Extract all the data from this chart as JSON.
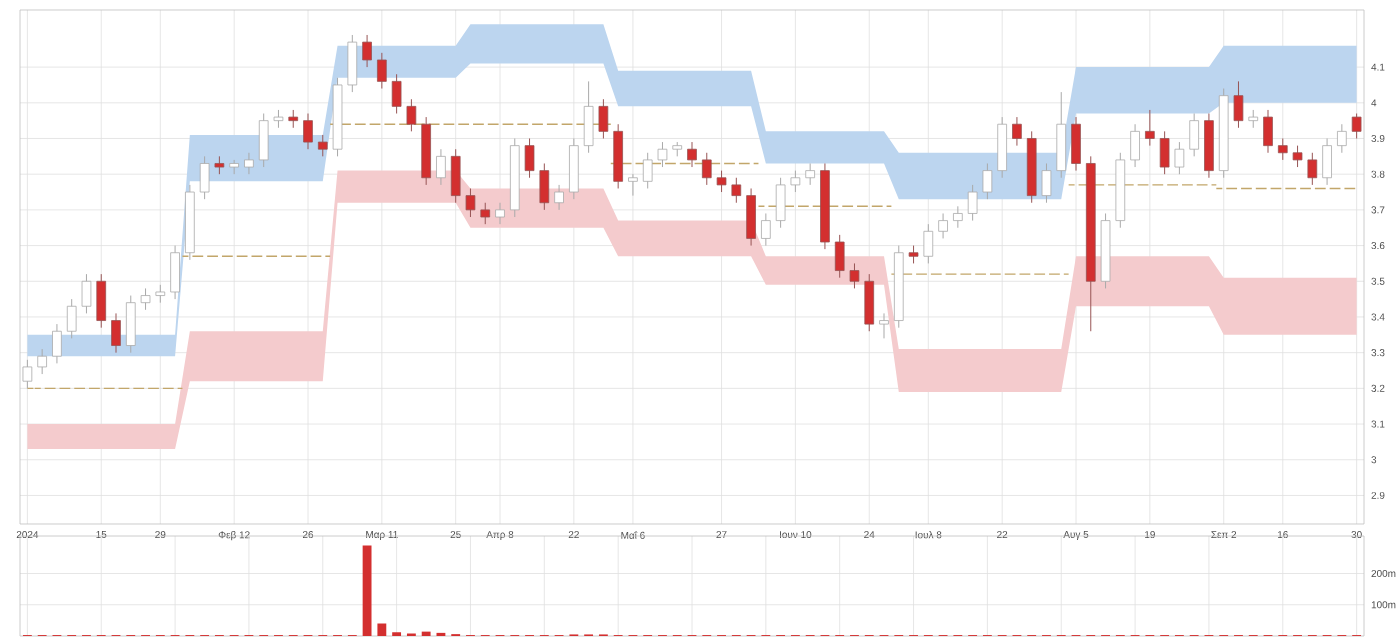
{
  "chart_data": [
    {
      "type": "candlestick",
      "grid": true,
      "categories": [
        "2024",
        null,
        null,
        null,
        null,
        "15",
        null,
        null,
        null,
        "29",
        null,
        null,
        null,
        null,
        "Φεβ 12",
        null,
        null,
        null,
        null,
        "26",
        null,
        null,
        null,
        null,
        "Μαρ 11",
        null,
        null,
        null,
        null,
        "25",
        null,
        null,
        "Απρ 8",
        null,
        null,
        null,
        null,
        "22",
        null,
        null,
        null,
        "Μαΐ 6",
        null,
        null,
        null,
        null,
        null,
        "27",
        null,
        null,
        null,
        null,
        "Ιουν 10",
        null,
        null,
        null,
        null,
        "24",
        null,
        null,
        null,
        "Ιουλ 8",
        null,
        null,
        null,
        null,
        "22",
        null,
        null,
        null,
        null,
        "Αυγ 5",
        null,
        null,
        null,
        null,
        "19",
        null,
        null,
        null,
        null,
        "Σεπ 2",
        null,
        null,
        null,
        "16",
        null,
        null,
        null,
        null,
        "30"
      ],
      "ylim": [
        2.82,
        4.26
      ],
      "yticks": [
        2.9,
        3,
        3.1,
        3.2,
        3.3,
        3.4,
        3.5,
        3.6,
        3.7,
        3.8,
        3.9,
        4,
        4.1
      ],
      "series": [
        {
          "type": "area",
          "color": "#bcd5ef",
          "values": [
            null,
            null,
            null,
            null,
            null,
            null,
            null,
            null,
            null,
            null,
            null,
            null,
            null,
            null,
            null,
            null,
            null,
            null,
            null,
            null,
            null,
            null,
            null,
            null,
            null,
            null,
            null,
            null,
            null,
            null,
            null,
            null,
            null,
            null,
            null,
            null,
            null,
            null,
            null,
            null,
            null,
            null,
            null,
            null,
            null,
            null,
            null,
            null,
            null,
            null,
            null,
            null,
            null,
            null,
            null,
            null,
            null,
            null,
            null,
            null,
            null,
            null,
            null,
            null,
            null,
            null,
            null,
            null,
            null,
            null,
            null,
            null,
            null,
            null,
            null,
            null,
            null,
            null,
            null,
            null,
            null,
            null,
            null,
            null,
            null,
            null,
            null,
            null,
            null,
            null,
            null
          ],
          "lower": [
            3.29,
            3.29,
            3.29,
            3.29,
            3.29,
            3.29,
            3.29,
            3.29,
            3.29,
            3.29,
            3.29,
            3.78,
            3.78,
            3.78,
            3.78,
            3.78,
            3.78,
            3.78,
            3.78,
            3.78,
            3.78,
            4.07,
            4.07,
            4.07,
            4.07,
            4.07,
            4.07,
            4.07,
            4.07,
            4.07,
            4.11,
            4.11,
            4.11,
            4.11,
            4.11,
            4.11,
            4.11,
            4.11,
            4.11,
            4.11,
            3.99,
            3.99,
            3.99,
            3.99,
            3.99,
            3.99,
            3.99,
            3.99,
            3.99,
            3.99,
            3.83,
            3.83,
            3.83,
            3.83,
            3.83,
            3.83,
            3.83,
            3.83,
            3.83,
            3.73,
            3.73,
            3.73,
            3.73,
            3.73,
            3.73,
            3.73,
            3.73,
            3.73,
            3.73,
            3.73,
            3.73,
            3.97,
            3.97,
            3.97,
            3.97,
            3.97,
            3.97,
            3.97,
            3.97,
            3.97,
            3.97,
            4.0,
            4.0,
            4.0,
            4.0,
            4.0,
            4.0,
            4.0,
            4.0,
            4.0,
            4.0
          ],
          "upper": [
            3.35,
            3.35,
            3.35,
            3.35,
            3.35,
            3.35,
            3.35,
            3.35,
            3.35,
            3.35,
            3.35,
            3.91,
            3.91,
            3.91,
            3.91,
            3.91,
            3.91,
            3.91,
            3.91,
            3.91,
            3.91,
            4.16,
            4.16,
            4.16,
            4.16,
            4.16,
            4.16,
            4.16,
            4.16,
            4.16,
            4.22,
            4.22,
            4.22,
            4.22,
            4.22,
            4.22,
            4.22,
            4.22,
            4.22,
            4.22,
            4.09,
            4.09,
            4.09,
            4.09,
            4.09,
            4.09,
            4.09,
            4.09,
            4.09,
            4.09,
            3.92,
            3.92,
            3.92,
            3.92,
            3.92,
            3.92,
            3.92,
            3.92,
            3.92,
            3.86,
            3.86,
            3.86,
            3.86,
            3.86,
            3.86,
            3.86,
            3.86,
            3.86,
            3.86,
            3.86,
            3.86,
            4.1,
            4.1,
            4.1,
            4.1,
            4.1,
            4.1,
            4.1,
            4.1,
            4.1,
            4.1,
            4.16,
            4.16,
            4.16,
            4.16,
            4.16,
            4.16,
            4.16,
            4.16,
            4.16,
            4.16
          ]
        },
        {
          "type": "area",
          "color": "#f4cbcd",
          "values": [
            null,
            null,
            null,
            null,
            null,
            null,
            null,
            null,
            null,
            null,
            null,
            null,
            null,
            null,
            null,
            null,
            null,
            null,
            null,
            null,
            null,
            null,
            null,
            null,
            null,
            null,
            null,
            null,
            null,
            null,
            null,
            null,
            null,
            null,
            null,
            null,
            null,
            null,
            null,
            null,
            null,
            null,
            null,
            null,
            null,
            null,
            null,
            null,
            null,
            null,
            null,
            null,
            null,
            null,
            null,
            null,
            null,
            null,
            null,
            null,
            null,
            null,
            null,
            null,
            null,
            null,
            null,
            null,
            null,
            null,
            null,
            null,
            null,
            null,
            null,
            null,
            null,
            null,
            null,
            null,
            null,
            null,
            null,
            null,
            null,
            null,
            null,
            null,
            null,
            null,
            null
          ],
          "lower": [
            3.03,
            3.03,
            3.03,
            3.03,
            3.03,
            3.03,
            3.03,
            3.03,
            3.03,
            3.03,
            3.03,
            3.22,
            3.22,
            3.22,
            3.22,
            3.22,
            3.22,
            3.22,
            3.22,
            3.22,
            3.22,
            3.72,
            3.72,
            3.72,
            3.72,
            3.72,
            3.72,
            3.72,
            3.72,
            3.72,
            3.65,
            3.65,
            3.65,
            3.65,
            3.65,
            3.65,
            3.65,
            3.65,
            3.65,
            3.65,
            3.57,
            3.57,
            3.57,
            3.57,
            3.57,
            3.57,
            3.57,
            3.57,
            3.57,
            3.57,
            3.49,
            3.49,
            3.49,
            3.49,
            3.49,
            3.49,
            3.49,
            3.49,
            3.49,
            3.19,
            3.19,
            3.19,
            3.19,
            3.19,
            3.19,
            3.19,
            3.19,
            3.19,
            3.19,
            3.19,
            3.19,
            3.43,
            3.43,
            3.43,
            3.43,
            3.43,
            3.43,
            3.43,
            3.43,
            3.43,
            3.43,
            3.35,
            3.35,
            3.35,
            3.35,
            3.35,
            3.35,
            3.35,
            3.35,
            3.35,
            3.35
          ],
          "upper": [
            3.1,
            3.1,
            3.1,
            3.1,
            3.1,
            3.1,
            3.1,
            3.1,
            3.1,
            3.1,
            3.1,
            3.36,
            3.36,
            3.36,
            3.36,
            3.36,
            3.36,
            3.36,
            3.36,
            3.36,
            3.36,
            3.81,
            3.81,
            3.81,
            3.81,
            3.81,
            3.81,
            3.81,
            3.81,
            3.81,
            3.76,
            3.76,
            3.76,
            3.76,
            3.76,
            3.76,
            3.76,
            3.76,
            3.76,
            3.76,
            3.67,
            3.67,
            3.67,
            3.67,
            3.67,
            3.67,
            3.67,
            3.67,
            3.67,
            3.67,
            3.57,
            3.57,
            3.57,
            3.57,
            3.57,
            3.57,
            3.57,
            3.57,
            3.57,
            3.31,
            3.31,
            3.31,
            3.31,
            3.31,
            3.31,
            3.31,
            3.31,
            3.31,
            3.31,
            3.31,
            3.31,
            3.57,
            3.57,
            3.57,
            3.57,
            3.57,
            3.57,
            3.57,
            3.57,
            3.57,
            3.57,
            3.51,
            3.51,
            3.51,
            3.51,
            3.51,
            3.51,
            3.51,
            3.51,
            3.51,
            3.51
          ]
        },
        {
          "type": "step",
          "color": "#c2a66a",
          "line_style": "dashed",
          "values": [
            3.2,
            3.2,
            3.2,
            3.2,
            3.2,
            3.2,
            3.2,
            3.2,
            3.2,
            3.2,
            3.2,
            3.57,
            3.57,
            3.57,
            3.57,
            3.57,
            3.57,
            3.57,
            3.57,
            3.57,
            3.57,
            3.94,
            3.94,
            3.94,
            3.94,
            3.94,
            3.94,
            3.94,
            3.94,
            3.94,
            3.94,
            3.94,
            3.94,
            3.94,
            3.94,
            3.94,
            3.94,
            3.94,
            3.94,
            3.94,
            3.83,
            3.83,
            3.83,
            3.83,
            3.83,
            3.83,
            3.83,
            3.83,
            3.83,
            3.83,
            3.71,
            3.71,
            3.71,
            3.71,
            3.71,
            3.71,
            3.71,
            3.71,
            3.71,
            3.52,
            3.52,
            3.52,
            3.52,
            3.52,
            3.52,
            3.52,
            3.52,
            3.52,
            3.52,
            3.52,
            3.52,
            3.77,
            3.77,
            3.77,
            3.77,
            3.77,
            3.77,
            3.77,
            3.77,
            3.77,
            3.77,
            3.76,
            3.76,
            3.76,
            3.76,
            3.76,
            3.76,
            3.76,
            3.76,
            3.76,
            3.76
          ]
        },
        {
          "type": "candlestick",
          "colors": [
            "#ffffff",
            "#ffffff",
            "#ffffff",
            "#ffffff",
            "#ffffff",
            "#d32f2f",
            "#d32f2f",
            "#ffffff",
            "#ffffff",
            "#ffffff",
            "#ffffff",
            "#ffffff",
            "#ffffff",
            "#d32f2f",
            "#ffffff",
            "#ffffff",
            "#ffffff",
            "#ffffff",
            "#d32f2f",
            "#d32f2f",
            "#d32f2f",
            "#ffffff",
            "#ffffff",
            "#d32f2f",
            "#d32f2f",
            "#d32f2f",
            "#d32f2f",
            "#d32f2f",
            "#ffffff",
            "#d32f2f",
            "#d32f2f",
            "#d32f2f",
            "#ffffff",
            "#ffffff",
            "#d32f2f",
            "#d32f2f",
            "#ffffff",
            "#ffffff",
            "#ffffff",
            "#d32f2f",
            "#d32f2f",
            "#ffffff",
            "#ffffff",
            "#ffffff",
            "#ffffff",
            "#d32f2f",
            "#d32f2f",
            "#d32f2f",
            "#d32f2f",
            "#d32f2f",
            "#ffffff",
            "#ffffff",
            "#ffffff",
            "#ffffff",
            "#d32f2f",
            "#d32f2f",
            "#d32f2f",
            "#d32f2f",
            "#ffffff",
            "#ffffff",
            "#d32f2f",
            "#ffffff",
            "#ffffff",
            "#ffffff",
            "#ffffff",
            "#ffffff",
            "#ffffff",
            "#d32f2f",
            "#d32f2f",
            "#ffffff",
            "#ffffff",
            "#d32f2f",
            "#d32f2f",
            "#ffffff",
            "#ffffff",
            "#ffffff",
            "#d32f2f",
            "#d32f2f",
            "#ffffff",
            "#ffffff",
            "#d32f2f",
            "#ffffff",
            "#d32f2f",
            "#ffffff",
            "#d32f2f",
            "#d32f2f",
            "#d32f2f",
            "#d32f2f",
            "#ffffff",
            "#ffffff",
            "#d32f2f"
          ],
          "ohlc": [
            [
              3.22,
              3.28,
              3.2,
              3.26
            ],
            [
              3.26,
              3.31,
              3.24,
              3.29
            ],
            [
              3.29,
              3.38,
              3.27,
              3.36
            ],
            [
              3.36,
              3.45,
              3.34,
              3.43
            ],
            [
              3.43,
              3.52,
              3.41,
              3.5
            ],
            [
              3.5,
              3.52,
              3.37,
              3.39
            ],
            [
              3.39,
              3.41,
              3.3,
              3.32
            ],
            [
              3.32,
              3.46,
              3.3,
              3.44
            ],
            [
              3.44,
              3.48,
              3.42,
              3.46
            ],
            [
              3.46,
              3.49,
              3.44,
              3.47
            ],
            [
              3.47,
              3.6,
              3.45,
              3.58
            ],
            [
              3.58,
              3.77,
              3.56,
              3.75
            ],
            [
              3.75,
              3.85,
              3.73,
              3.83
            ],
            [
              3.83,
              3.85,
              3.8,
              3.82
            ],
            [
              3.82,
              3.84,
              3.8,
              3.83
            ],
            [
              3.82,
              3.86,
              3.8,
              3.84
            ],
            [
              3.84,
              3.97,
              3.82,
              3.95
            ],
            [
              3.95,
              3.98,
              3.93,
              3.96
            ],
            [
              3.96,
              3.98,
              3.93,
              3.95
            ],
            [
              3.95,
              3.97,
              3.87,
              3.89
            ],
            [
              3.89,
              3.91,
              3.85,
              3.87
            ],
            [
              3.87,
              4.07,
              3.85,
              4.05
            ],
            [
              4.05,
              4.19,
              4.03,
              4.17
            ],
            [
              4.17,
              4.19,
              4.1,
              4.12
            ],
            [
              4.12,
              4.14,
              4.04,
              4.06
            ],
            [
              4.06,
              4.08,
              3.97,
              3.99
            ],
            [
              3.99,
              4.01,
              3.92,
              3.94
            ],
            [
              3.94,
              3.96,
              3.77,
              3.79
            ],
            [
              3.79,
              3.87,
              3.77,
              3.85
            ],
            [
              3.85,
              3.87,
              3.72,
              3.74
            ],
            [
              3.74,
              3.76,
              3.68,
              3.7
            ],
            [
              3.7,
              3.72,
              3.66,
              3.68
            ],
            [
              3.68,
              3.72,
              3.66,
              3.7
            ],
            [
              3.7,
              3.9,
              3.68,
              3.88
            ],
            [
              3.88,
              3.9,
              3.79,
              3.81
            ],
            [
              3.81,
              3.83,
              3.7,
              3.72
            ],
            [
              3.72,
              3.77,
              3.7,
              3.75
            ],
            [
              3.75,
              3.9,
              3.73,
              3.88
            ],
            [
              3.88,
              4.06,
              3.86,
              3.99
            ],
            [
              3.99,
              4.01,
              3.9,
              3.92
            ],
            [
              3.92,
              3.94,
              3.76,
              3.78
            ],
            [
              3.78,
              3.8,
              3.74,
              3.79
            ],
            [
              3.78,
              3.86,
              3.76,
              3.84
            ],
            [
              3.84,
              3.89,
              3.82,
              3.87
            ],
            [
              3.87,
              3.89,
              3.85,
              3.88
            ],
            [
              3.87,
              3.89,
              3.82,
              3.84
            ],
            [
              3.84,
              3.86,
              3.77,
              3.79
            ],
            [
              3.79,
              3.81,
              3.75,
              3.77
            ],
            [
              3.77,
              3.79,
              3.72,
              3.74
            ],
            [
              3.74,
              3.76,
              3.6,
              3.62
            ],
            [
              3.62,
              3.69,
              3.6,
              3.67
            ],
            [
              3.67,
              3.79,
              3.65,
              3.77
            ],
            [
              3.77,
              3.81,
              3.75,
              3.79
            ],
            [
              3.79,
              3.83,
              3.77,
              3.81
            ],
            [
              3.81,
              3.83,
              3.59,
              3.61
            ],
            [
              3.61,
              3.63,
              3.51,
              3.53
            ],
            [
              3.53,
              3.55,
              3.48,
              3.5
            ],
            [
              3.5,
              3.52,
              3.36,
              3.38
            ],
            [
              3.38,
              3.41,
              3.34,
              3.39
            ],
            [
              3.39,
              3.6,
              3.37,
              3.58
            ],
            [
              3.58,
              3.6,
              3.55,
              3.57
            ],
            [
              3.57,
              3.66,
              3.55,
              3.64
            ],
            [
              3.64,
              3.69,
              3.62,
              3.67
            ],
            [
              3.67,
              3.71,
              3.65,
              3.69
            ],
            [
              3.69,
              3.77,
              3.67,
              3.75
            ],
            [
              3.75,
              3.83,
              3.73,
              3.81
            ],
            [
              3.81,
              3.96,
              3.79,
              3.94
            ],
            [
              3.94,
              3.96,
              3.88,
              3.9
            ],
            [
              3.9,
              3.92,
              3.72,
              3.74
            ],
            [
              3.74,
              3.83,
              3.72,
              3.81
            ],
            [
              3.81,
              4.03,
              3.79,
              3.94
            ],
            [
              3.94,
              3.96,
              3.81,
              3.83
            ],
            [
              3.83,
              3.85,
              3.36,
              3.5
            ],
            [
              3.5,
              3.69,
              3.48,
              3.67
            ],
            [
              3.67,
              3.86,
              3.65,
              3.84
            ],
            [
              3.84,
              3.94,
              3.82,
              3.92
            ],
            [
              3.92,
              3.98,
              3.88,
              3.9
            ],
            [
              3.9,
              3.92,
              3.8,
              3.82
            ],
            [
              3.82,
              3.89,
              3.8,
              3.87
            ],
            [
              3.87,
              3.97,
              3.85,
              3.95
            ],
            [
              3.95,
              3.97,
              3.79,
              3.81
            ],
            [
              3.81,
              4.04,
              3.79,
              4.02
            ],
            [
              4.02,
              4.06,
              3.93,
              3.95
            ],
            [
              3.95,
              3.98,
              3.93,
              3.96
            ],
            [
              3.96,
              3.98,
              3.86,
              3.88
            ],
            [
              3.88,
              3.9,
              3.84,
              3.86
            ],
            [
              3.86,
              3.88,
              3.82,
              3.84
            ],
            [
              3.84,
              3.86,
              3.77,
              3.79
            ],
            [
              3.79,
              3.9,
              3.77,
              3.88
            ],
            [
              3.88,
              3.94,
              3.86,
              3.92
            ],
            [
              3.96,
              3.97,
              3.9,
              3.92
            ]
          ]
        }
      ]
    },
    {
      "type": "bar",
      "color": "#d32f2f",
      "grid": true,
      "tick_labels": "y",
      "ylim": [
        0,
        320
      ],
      "yticks": [
        {
          "value": 100,
          "label": "100m"
        },
        {
          "value": 200,
          "label": "200m"
        }
      ],
      "categories": [
        null,
        null,
        null,
        null,
        null,
        null,
        null,
        null,
        null,
        null,
        null,
        null,
        null,
        null,
        null,
        null,
        null,
        null,
        null,
        null,
        null,
        null,
        null,
        null,
        null,
        null,
        null,
        null,
        null,
        null,
        null,
        null,
        null,
        null,
        null,
        null,
        null,
        null,
        null,
        null,
        null,
        null,
        null,
        null,
        null,
        null,
        null,
        null,
        null,
        null,
        null,
        null,
        null,
        null,
        null,
        null,
        null,
        null,
        null,
        null,
        null,
        null,
        null,
        null,
        null,
        null,
        null,
        null,
        null,
        null,
        null,
        null,
        null,
        null,
        null,
        null,
        null,
        null,
        null,
        null,
        null,
        null,
        null,
        null,
        null,
        null,
        null,
        null,
        null,
        null,
        null
      ],
      "values": [
        3,
        3,
        3,
        3,
        3,
        3,
        3,
        3,
        3,
        3,
        3,
        3,
        3,
        3,
        3,
        3,
        3,
        3,
        3,
        3,
        3,
        3,
        3,
        290,
        40,
        12,
        8,
        14,
        10,
        6,
        3,
        3,
        3,
        3,
        3,
        3,
        3,
        5,
        5,
        5,
        3,
        3,
        3,
        3,
        3,
        3,
        3,
        3,
        3,
        3,
        3,
        3,
        3,
        3,
        3,
        3,
        3,
        3,
        3,
        3,
        3,
        3,
        3,
        3,
        3,
        3,
        3,
        3,
        3,
        3,
        3,
        3,
        3,
        3,
        3,
        3,
        3,
        3,
        3,
        3,
        3,
        3,
        3,
        3,
        3,
        3,
        3,
        3,
        3,
        3,
        3
      ]
    }
  ]
}
